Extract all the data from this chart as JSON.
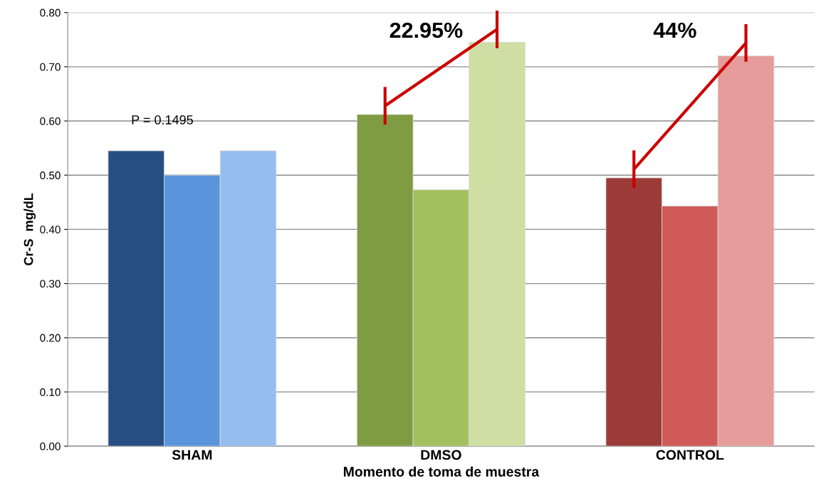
{
  "chart_data": {
    "type": "bar",
    "xlabel": "Momento de toma de muestra",
    "ylabel": "Cr-S  mg/dL",
    "categories": [
      "SHAM",
      "DMSO",
      "CONTROL"
    ],
    "series": [
      {
        "colors": [
          "#254e82",
          "#7f9c43",
          "#9d3b39"
        ],
        "values": [
          0.545,
          0.612,
          0.495
        ]
      },
      {
        "colors": [
          "#5a95dc",
          "#a3c05f",
          "#cf5a57"
        ],
        "values": [
          0.5,
          0.473,
          0.443
        ]
      },
      {
        "colors": [
          "#95bdee",
          "#cfdfa3",
          "#e59c9a"
        ],
        "values": [
          0.545,
          0.745,
          0.72
        ]
      }
    ],
    "ylim": [
      0,
      0.8
    ],
    "yticks": [
      {
        "value": 0,
        "label": "0.00"
      },
      {
        "value": 0.1,
        "label": "0.10"
      },
      {
        "value": 0.2,
        "label": "0.20"
      },
      {
        "value": 0.3,
        "label": "0.30"
      },
      {
        "value": 0.4,
        "label": "0.40"
      },
      {
        "value": 0.5,
        "label": "0.50"
      },
      {
        "value": 0.6,
        "label": "0.60"
      },
      {
        "value": 0.7,
        "label": "0.70"
      },
      {
        "value": 0.8,
        "label": "0.80"
      }
    ],
    "grid": "y",
    "legend": false,
    "annotations": [
      "P = 0.1495",
      "22.95%",
      "44%"
    ]
  }
}
